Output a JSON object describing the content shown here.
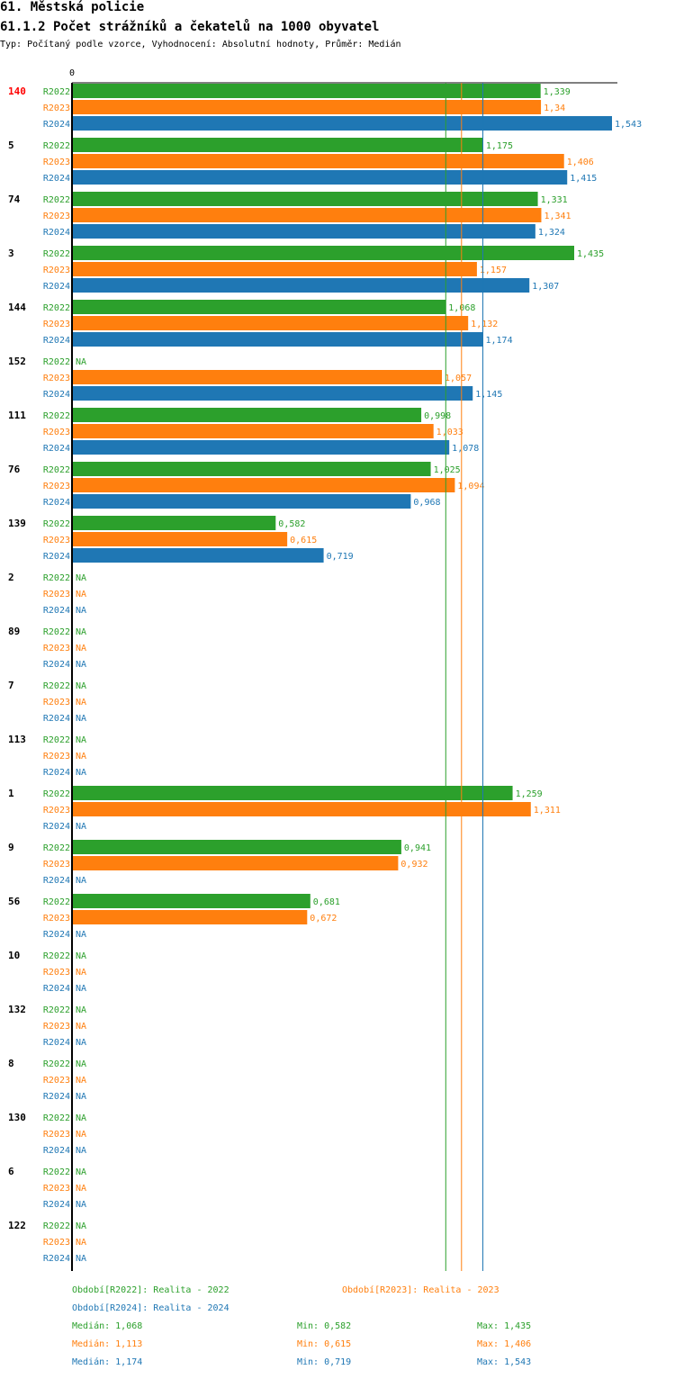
{
  "header": {
    "title": "61. Městská policie",
    "subtitle": "61.1.2 Počet strážníků a čekatelů na 1000 obyvatel",
    "meta": "Typ: Počítaný podle vzorce, Vyhodnocení: Absolutní hodnoty, Průměr: Medián"
  },
  "colors": {
    "R2022": "#2ca02c",
    "R2023": "#ff7f0e",
    "R2024": "#1f77b4",
    "highlight": "#ff0000"
  },
  "chart_data": {
    "type": "bar",
    "orientation": "horizontal",
    "axis_zero_label": "0",
    "x_range": [
      0,
      1.543
    ],
    "na_label": "NA",
    "highlight_category": "140",
    "categories": [
      "140",
      "5",
      "74",
      "3",
      "144",
      "152",
      "111",
      "76",
      "139",
      "2",
      "89",
      "7",
      "113",
      "1",
      "9",
      "56",
      "10",
      "132",
      "8",
      "130",
      "6",
      "122"
    ],
    "series": [
      {
        "name": "R2022",
        "labels": [
          "1,339",
          "1,175",
          "1,331",
          "1,435",
          "1,068",
          null,
          "0,998",
          "1,025",
          "0,582",
          null,
          null,
          null,
          null,
          "1,259",
          "0,941",
          "0,681",
          null,
          null,
          null,
          null,
          null,
          null
        ],
        "values": [
          1.339,
          1.175,
          1.331,
          1.435,
          1.068,
          null,
          0.998,
          1.025,
          0.582,
          null,
          null,
          null,
          null,
          1.259,
          0.941,
          0.681,
          null,
          null,
          null,
          null,
          null,
          null
        ]
      },
      {
        "name": "R2023",
        "labels": [
          "1,34",
          "1,406",
          "1,341",
          "1,157",
          "1,132",
          "1,057",
          "1,033",
          "1,094",
          "0,615",
          null,
          null,
          null,
          null,
          "1,311",
          "0,932",
          "0,672",
          null,
          null,
          null,
          null,
          null,
          null
        ],
        "values": [
          1.34,
          1.406,
          1.341,
          1.157,
          1.132,
          1.057,
          1.033,
          1.094,
          0.615,
          null,
          null,
          null,
          null,
          1.311,
          0.932,
          0.672,
          null,
          null,
          null,
          null,
          null,
          null
        ]
      },
      {
        "name": "R2024",
        "labels": [
          "1,543",
          "1,415",
          "1,324",
          "1,307",
          "1,174",
          "1,145",
          "1,078",
          "0,968",
          "0,719",
          null,
          null,
          null,
          null,
          null,
          null,
          null,
          null,
          null,
          null,
          null,
          null,
          null
        ],
        "values": [
          1.543,
          1.415,
          1.324,
          1.307,
          1.174,
          1.145,
          1.078,
          0.968,
          0.719,
          null,
          null,
          null,
          null,
          null,
          null,
          null,
          null,
          null,
          null,
          null,
          null,
          null
        ]
      }
    ],
    "median_lines": [
      {
        "series": "R2022",
        "value": 1.068
      },
      {
        "series": "R2023",
        "value": 1.113
      },
      {
        "series": "R2024",
        "value": 1.174
      }
    ]
  },
  "legend": {
    "periods": [
      {
        "series": "R2022",
        "text": "Období[R2022]: Realita - 2022"
      },
      {
        "series": "R2023",
        "text": "Období[R2023]: Realita - 2023"
      },
      {
        "series": "R2024",
        "text": "Období[R2024]: Realita - 2024"
      }
    ],
    "stats": [
      {
        "series": "R2022",
        "median": "Medián: 1,068",
        "min": "Min: 0,582",
        "max": "Max: 1,435"
      },
      {
        "series": "R2023",
        "median": "Medián: 1,113",
        "min": "Min: 0,615",
        "max": "Max: 1,406"
      },
      {
        "series": "R2024",
        "median": "Medián: 1,174",
        "min": "Min: 0,719",
        "max": "Max: 1,543"
      }
    ]
  }
}
